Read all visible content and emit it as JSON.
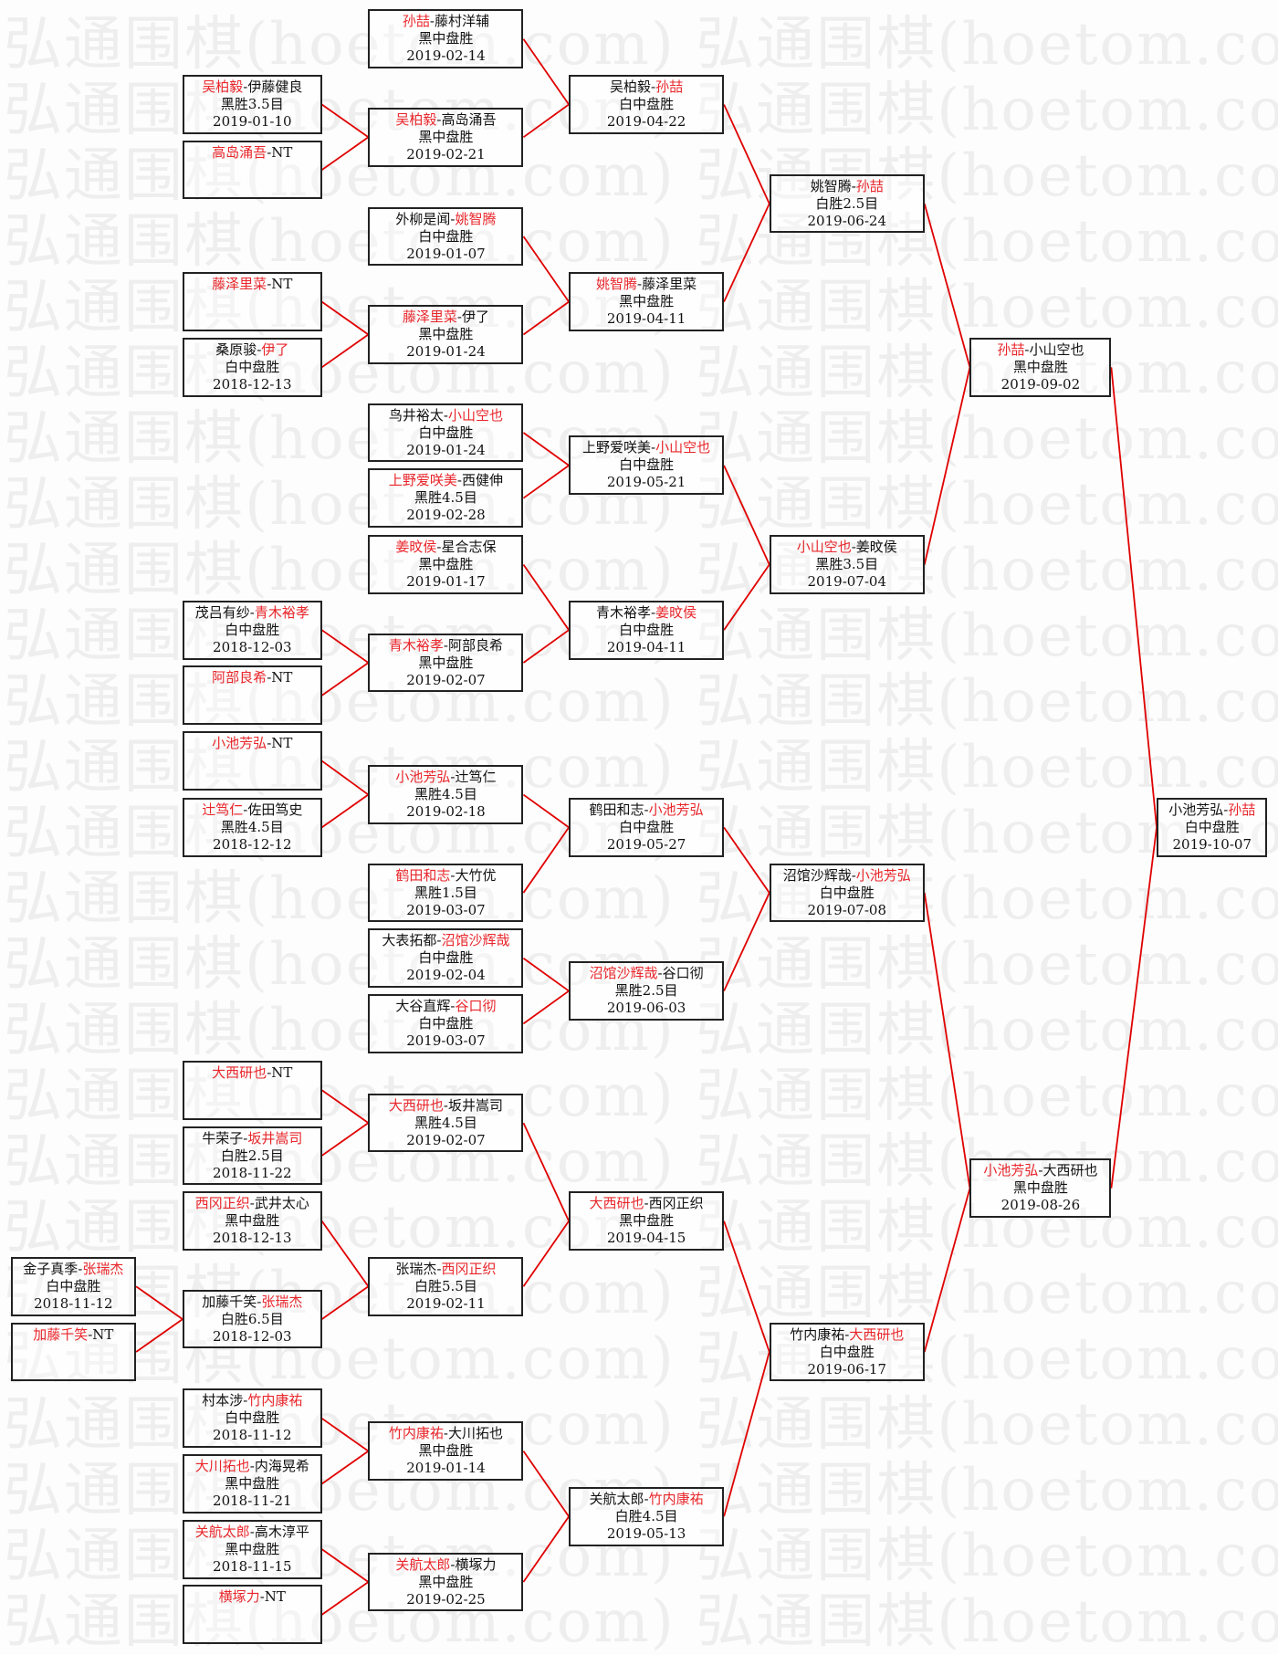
{
  "watermark": "弘通围棋(hoetom.com)",
  "colors": {
    "winner": "#e8262b",
    "line": "#e00000",
    "border": "#222222"
  },
  "matches": [
    {
      "p1": "孙喆",
      "p2": "藤村洋辅",
      "winner": 1,
      "result": "黑中盘胜",
      "date": "2019-02-14"
    },
    {
      "p1": "吴柏毅",
      "p2": "伊藤健良",
      "winner": 1,
      "result": "黑胜3.5目",
      "date": "2019-01-10"
    },
    {
      "p1": "高岛涌吾",
      "p2": "NT",
      "winner": 1,
      "result": "",
      "date": ""
    },
    {
      "p1": "吴柏毅",
      "p2": "高岛涌吾",
      "winner": 1,
      "result": "黑中盘胜",
      "date": "2019-02-21"
    },
    {
      "p1": "吴柏毅",
      "p2": "孙喆",
      "winner": 2,
      "result": "白中盘胜",
      "date": "2019-04-22"
    },
    {
      "p1": "外柳是闻",
      "p2": "姚智腾",
      "winner": 2,
      "result": "白中盘胜",
      "date": "2019-01-07"
    },
    {
      "p1": "藤泽里菜",
      "p2": "NT",
      "winner": 1,
      "result": "",
      "date": ""
    },
    {
      "p1": "桑原骏",
      "p2": "伊了",
      "winner": 2,
      "result": "白中盘胜",
      "date": "2018-12-13"
    },
    {
      "p1": "藤泽里菜",
      "p2": "伊了",
      "winner": 1,
      "result": "黑中盘胜",
      "date": "2019-01-24"
    },
    {
      "p1": "姚智腾",
      "p2": "藤泽里菜",
      "winner": 1,
      "result": "黑中盘胜",
      "date": "2019-04-11"
    },
    {
      "p1": "姚智腾",
      "p2": "孙喆",
      "winner": 2,
      "result": "白胜2.5目",
      "date": "2019-06-24"
    },
    {
      "p1": "鸟井裕太",
      "p2": "小山空也",
      "winner": 2,
      "result": "白中盘胜",
      "date": "2019-01-24"
    },
    {
      "p1": "上野爱咲美",
      "p2": "西健伸",
      "winner": 1,
      "result": "黑胜4.5目",
      "date": "2019-02-28"
    },
    {
      "p1": "上野爱咲美",
      "p2": "小山空也",
      "winner": 2,
      "result": "白中盘胜",
      "date": "2019-05-21"
    },
    {
      "p1": "姜旼侯",
      "p2": "星合志保",
      "winner": 1,
      "result": "黑中盘胜",
      "date": "2019-01-17"
    },
    {
      "p1": "茂吕有纱",
      "p2": "青木裕孝",
      "winner": 2,
      "result": "白中盘胜",
      "date": "2018-12-03"
    },
    {
      "p1": "阿部良希",
      "p2": "NT",
      "winner": 1,
      "result": "",
      "date": ""
    },
    {
      "p1": "青木裕孝",
      "p2": "阿部良希",
      "winner": 1,
      "result": "黑中盘胜",
      "date": "2019-02-07"
    },
    {
      "p1": "青木裕孝",
      "p2": "姜旼侯",
      "winner": 2,
      "result": "白中盘胜",
      "date": "2019-04-11"
    },
    {
      "p1": "小山空也",
      "p2": "姜旼侯",
      "winner": 1,
      "result": "黑胜3.5目",
      "date": "2019-07-04"
    },
    {
      "p1": "孙喆",
      "p2": "小山空也",
      "winner": 1,
      "result": "黑中盘胜",
      "date": "2019-09-02"
    },
    {
      "p1": "小池芳弘",
      "p2": "NT",
      "winner": 1,
      "result": "",
      "date": ""
    },
    {
      "p1": "辻笃仁",
      "p2": "佐田笃史",
      "winner": 1,
      "result": "黑胜4.5目",
      "date": "2018-12-12"
    },
    {
      "p1": "小池芳弘",
      "p2": "辻笃仁",
      "winner": 1,
      "result": "黑胜4.5目",
      "date": "2019-02-18"
    },
    {
      "p1": "鹤田和志",
      "p2": "大竹优",
      "winner": 1,
      "result": "黑胜1.5目",
      "date": "2019-03-07"
    },
    {
      "p1": "鹤田和志",
      "p2": "小池芳弘",
      "winner": 2,
      "result": "白中盘胜",
      "date": "2019-05-27"
    },
    {
      "p1": "大表拓都",
      "p2": "沼馆沙辉哉",
      "winner": 2,
      "result": "白中盘胜",
      "date": "2019-02-04"
    },
    {
      "p1": "大谷直辉",
      "p2": "谷口彻",
      "winner": 2,
      "result": "白中盘胜",
      "date": "2019-03-07"
    },
    {
      "p1": "沼馆沙辉哉",
      "p2": "谷口彻",
      "winner": 1,
      "result": "黑胜2.5目",
      "date": "2019-06-03"
    },
    {
      "p1": "沼馆沙辉哉",
      "p2": "小池芳弘",
      "winner": 2,
      "result": "白中盘胜",
      "date": "2019-07-08"
    },
    {
      "p1": "大西研也",
      "p2": "NT",
      "winner": 1,
      "result": "",
      "date": ""
    },
    {
      "p1": "牛荣子",
      "p2": "坂井嵩司",
      "winner": 2,
      "result": "白胜2.5目",
      "date": "2018-11-22"
    },
    {
      "p1": "大西研也",
      "p2": "坂井嵩司",
      "winner": 1,
      "result": "黑胜4.5目",
      "date": "2019-02-07"
    },
    {
      "p1": "西冈正织",
      "p2": "武井太心",
      "winner": 1,
      "result": "黑中盘胜",
      "date": "2018-12-13"
    },
    {
      "p1": "金子真季",
      "p2": "张瑞杰",
      "winner": 2,
      "result": "白中盘胜",
      "date": "2018-11-12"
    },
    {
      "p1": "加藤千笑",
      "p2": "NT",
      "winner": 1,
      "result": "",
      "date": ""
    },
    {
      "p1": "加藤千笑",
      "p2": "张瑞杰",
      "winner": 2,
      "result": "白胜6.5目",
      "date": "2018-12-03"
    },
    {
      "p1": "张瑞杰",
      "p2": "西冈正织",
      "winner": 2,
      "result": "白胜5.5目",
      "date": "2019-02-11"
    },
    {
      "p1": "大西研也",
      "p2": "西冈正织",
      "winner": 1,
      "result": "黑中盘胜",
      "date": "2019-04-15"
    },
    {
      "p1": "村本涉",
      "p2": "竹内康祐",
      "winner": 2,
      "result": "白中盘胜",
      "date": "2018-11-12"
    },
    {
      "p1": "大川拓也",
      "p2": "内海晃希",
      "winner": 1,
      "result": "黑中盘胜",
      "date": "2018-11-21"
    },
    {
      "p1": "竹内康祐",
      "p2": "大川拓也",
      "winner": 1,
      "result": "黑中盘胜",
      "date": "2019-01-14"
    },
    {
      "p1": "关航太郎",
      "p2": "高木淳平",
      "winner": 1,
      "result": "黑中盘胜",
      "date": "2018-11-15"
    },
    {
      "p1": "横塚力",
      "p2": "NT",
      "winner": 1,
      "result": "",
      "date": ""
    },
    {
      "p1": "关航太郎",
      "p2": "横塚力",
      "winner": 1,
      "result": "黑中盘胜",
      "date": "2019-02-25"
    },
    {
      "p1": "关航太郎",
      "p2": "竹内康祐",
      "winner": 2,
      "result": "白胜4.5目",
      "date": "2019-05-13"
    },
    {
      "p1": "竹内康祐",
      "p2": "大西研也",
      "winner": 2,
      "result": "白中盘胜",
      "date": "2019-06-17"
    },
    {
      "p1": "小池芳弘",
      "p2": "大西研也",
      "winner": 1,
      "result": "黑中盘胜",
      "date": "2019-08-26"
    },
    {
      "p1": "小池芳弘",
      "p2": "孙喆",
      "winner": 2,
      "result": "白中盘胜",
      "date": "2019-10-07"
    }
  ]
}
